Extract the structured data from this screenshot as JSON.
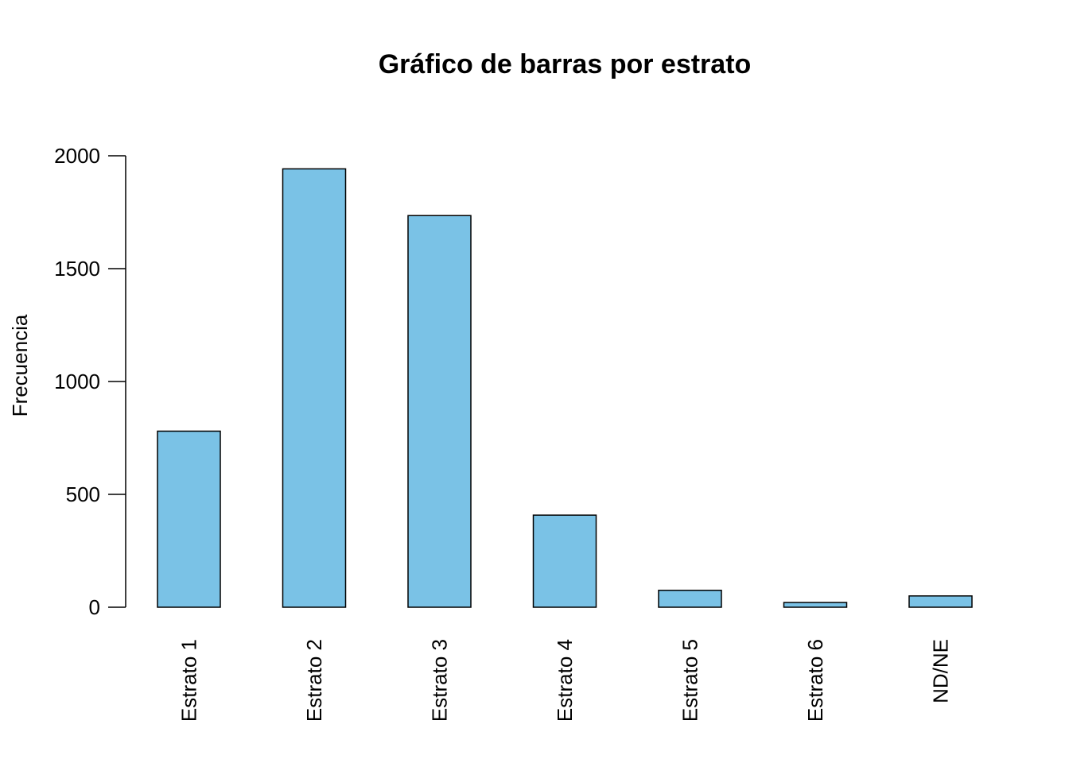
{
  "chart_data": {
    "type": "bar",
    "title": "Gráfico de barras por estrato",
    "xlabel": "",
    "ylabel": "Frecuencia",
    "categories": [
      "Estrato 1",
      "Estrato 2",
      "Estrato 3",
      "Estrato 4",
      "Estrato 5",
      "Estrato 6",
      "ND/NE"
    ],
    "values": [
      780,
      1942,
      1735,
      408,
      75,
      21,
      50
    ],
    "ylim": [
      0,
      2000
    ],
    "yticks": [
      0,
      500,
      1000,
      1500,
      2000
    ],
    "grid": false,
    "legend": "none",
    "bar_color": "#7AC2E6",
    "edge_color": "#000000"
  }
}
